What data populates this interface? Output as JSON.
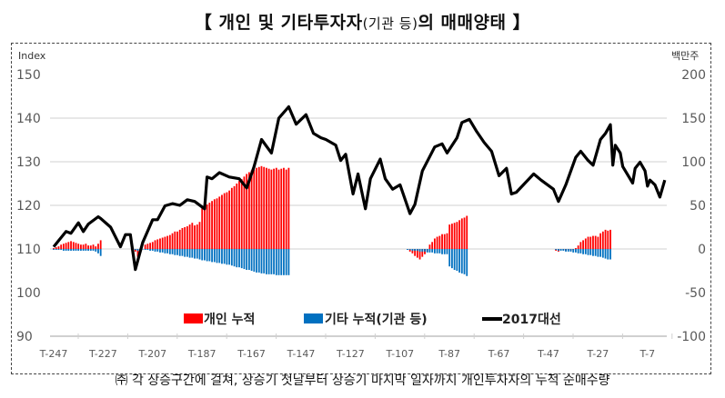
{
  "title": {
    "main_a": "【 개인 및 기타투자자",
    "main_small": "(기관 등)",
    "main_b": "의 매매양태 】"
  },
  "footnote": "㈜ 각 상승구간에 걸쳐, 상승기 첫날부터 상승기 마지막 일자까지 개인투자자의 누적 순매수량",
  "chart_data": {
    "type": "bar+line",
    "left_axis": {
      "label": "Index",
      "ylim": [
        90,
        150
      ],
      "ticks": [
        "150",
        "140",
        "130",
        "120",
        "110",
        "100",
        "90"
      ]
    },
    "right_axis": {
      "label": "백만주",
      "ylim": [
        -100,
        200
      ],
      "ticks": [
        "200",
        "150",
        "100",
        "50",
        "0",
        "-50",
        "-100"
      ]
    },
    "x_ticks": [
      "T-247",
      "T-227",
      "T-207",
      "T-187",
      "T-167",
      "T-147",
      "T-127",
      "T-107",
      "T-87",
      "T-67",
      "T-47",
      "T-27",
      "T-7"
    ],
    "x_range": [
      -247,
      0
    ],
    "grid": true,
    "legend": {
      "position": "bottom-inside",
      "items": [
        "개인 누적",
        "기타 누적(기관 등)",
        "2017대선"
      ]
    },
    "colors": {
      "individual": "#ff0000",
      "other": "#0070c0",
      "line": "#000000"
    },
    "bar_segments": [
      {
        "start": -247,
        "individual": [
          1,
          2,
          3,
          5,
          6,
          7,
          8,
          9,
          8,
          7,
          6,
          5,
          5,
          6,
          4,
          4,
          5,
          3,
          6,
          10
        ],
        "other": [
          -1,
          -1,
          -1,
          -1,
          -2,
          -2,
          -2,
          -2,
          -2,
          -2,
          -2,
          -2,
          -2,
          -2,
          -2,
          -2,
          -2,
          -3,
          -5,
          -8
        ]
      },
      {
        "start": -214,
        "individual": [
          -3,
          -9,
          -4,
          0,
          5,
          6,
          7,
          8,
          10,
          11,
          12,
          13,
          14,
          15,
          16,
          18,
          20,
          20,
          22,
          24,
          25,
          26,
          28,
          30,
          27,
          28,
          31,
          48,
          50,
          51,
          53,
          55,
          57,
          58,
          60,
          62,
          64,
          65,
          67,
          70,
          72,
          75,
          78,
          80,
          83,
          86,
          88,
          90,
          91,
          93,
          94,
          95,
          94,
          93,
          92,
          91,
          92,
          93,
          91,
          92,
          93,
          91,
          93
        ],
        "other": [
          -1,
          -2,
          -1,
          0,
          -1,
          -1,
          -2,
          -2,
          -3,
          -3,
          -4,
          -4,
          -5,
          -5,
          -6,
          -6,
          -7,
          -7,
          -8,
          -8,
          -9,
          -9,
          -10,
          -10,
          -11,
          -11,
          -12,
          -13,
          -13,
          -14,
          -14,
          -15,
          -15,
          -16,
          -16,
          -17,
          -17,
          -18,
          -18,
          -19,
          -20,
          -21,
          -21,
          -22,
          -23,
          -24,
          -24,
          -25,
          -26,
          -27,
          -27,
          -28,
          -28,
          -29,
          -29,
          -29,
          -29,
          -30,
          -30,
          -30,
          -30,
          -30,
          -30
        ]
      },
      {
        "start": -104,
        "individual": [
          0,
          -3,
          -5,
          -8,
          -10,
          -12,
          -9,
          -6,
          -3,
          5,
          8,
          12,
          14,
          15,
          17,
          17,
          18,
          28,
          29,
          30,
          31,
          33,
          35,
          36,
          38
        ],
        "other": [
          -1,
          -1,
          -2,
          -2,
          -2,
          -3,
          -3,
          -3,
          -4,
          -4,
          -4,
          -5,
          -5,
          -5,
          -6,
          -6,
          -6,
          -20,
          -22,
          -24,
          -25,
          -27,
          -28,
          -29,
          -31
        ]
      },
      {
        "start": -44,
        "individual": [
          -2,
          -3,
          0,
          -1,
          -2,
          -1,
          -2,
          -1,
          1,
          4,
          8,
          10,
          12,
          14,
          14,
          15,
          15,
          14,
          18,
          20,
          22,
          21,
          22
        ],
        "other": [
          -1,
          -2,
          -2,
          -2,
          -3,
          -3,
          -3,
          -4,
          -4,
          -5,
          -5,
          -6,
          -6,
          -7,
          -7,
          -8,
          -8,
          -9,
          -9,
          -10,
          -11,
          -12,
          -12
        ]
      }
    ],
    "line": [
      [
        -247,
        110.5
      ],
      [
        -245,
        111.9
      ],
      [
        -242,
        114
      ],
      [
        -240,
        113.6
      ],
      [
        -237,
        116
      ],
      [
        -235,
        114
      ],
      [
        -233,
        115.7
      ],
      [
        -229,
        117.4
      ],
      [
        -228,
        117
      ],
      [
        -224,
        115
      ],
      [
        -220,
        110.5
      ],
      [
        -218,
        113.3
      ],
      [
        -216,
        113.3
      ],
      [
        -214,
        105.3
      ],
      [
        -211,
        111.5
      ],
      [
        -207,
        116.7
      ],
      [
        -205,
        116.7
      ],
      [
        -202,
        119.9
      ],
      [
        -199,
        120.4
      ],
      [
        -196,
        120
      ],
      [
        -193,
        121.3
      ],
      [
        -190,
        120.9
      ],
      [
        -186,
        119.2
      ],
      [
        -185,
        126.5
      ],
      [
        -183,
        126.1
      ],
      [
        -180,
        127.5
      ],
      [
        -176,
        126.5
      ],
      [
        -172,
        126.1
      ],
      [
        -169,
        124
      ],
      [
        -166,
        128.9
      ],
      [
        -163,
        135.1
      ],
      [
        -159,
        132
      ],
      [
        -156,
        140
      ],
      [
        -152,
        142.6
      ],
      [
        -149,
        138.6
      ],
      [
        -145,
        140.8
      ],
      [
        -142,
        136.5
      ],
      [
        -139,
        135.5
      ],
      [
        -137,
        135.1
      ],
      [
        -133,
        133.8
      ],
      [
        -131,
        130.3
      ],
      [
        -129,
        131.7
      ],
      [
        -126,
        122.6
      ],
      [
        -124,
        127.2
      ],
      [
        -121,
        119.2
      ],
      [
        -119,
        126.1
      ],
      [
        -115,
        130.6
      ],
      [
        -113,
        126.1
      ],
      [
        -110,
        123.7
      ],
      [
        -107,
        124.7
      ],
      [
        -103,
        118.1
      ],
      [
        -101,
        120.2
      ],
      [
        -98,
        127.9
      ],
      [
        -93,
        133.4
      ],
      [
        -90,
        134.1
      ],
      [
        -88,
        132
      ],
      [
        -84,
        135.5
      ],
      [
        -82,
        139
      ],
      [
        -79,
        139.7
      ],
      [
        -76,
        136.9
      ],
      [
        -73,
        134.4
      ],
      [
        -70,
        132.4
      ],
      [
        -67,
        126.8
      ],
      [
        -64,
        128.5
      ],
      [
        -62,
        122.6
      ],
      [
        -60,
        123
      ],
      [
        -53,
        127.2
      ],
      [
        -50,
        125.8
      ],
      [
        -45,
        123.7
      ],
      [
        -43,
        120.9
      ],
      [
        -40,
        124.7
      ],
      [
        -36,
        131
      ],
      [
        -34,
        132.4
      ],
      [
        -31,
        130.3
      ],
      [
        -29,
        129.2
      ],
      [
        -26,
        135.1
      ],
      [
        -24,
        136.5
      ],
      [
        -22,
        138.5
      ],
      [
        -21,
        129.2
      ],
      [
        -20,
        133.8
      ],
      [
        -18,
        132
      ],
      [
        -17,
        128.9
      ],
      [
        -13,
        125.1
      ],
      [
        -12,
        128.5
      ],
      [
        -10,
        129.9
      ],
      [
        -8,
        127.9
      ],
      [
        -7,
        124.4
      ],
      [
        -6,
        125.8
      ],
      [
        -4,
        124.7
      ],
      [
        -2,
        121.9
      ],
      [
        0,
        125.8
      ]
    ]
  }
}
